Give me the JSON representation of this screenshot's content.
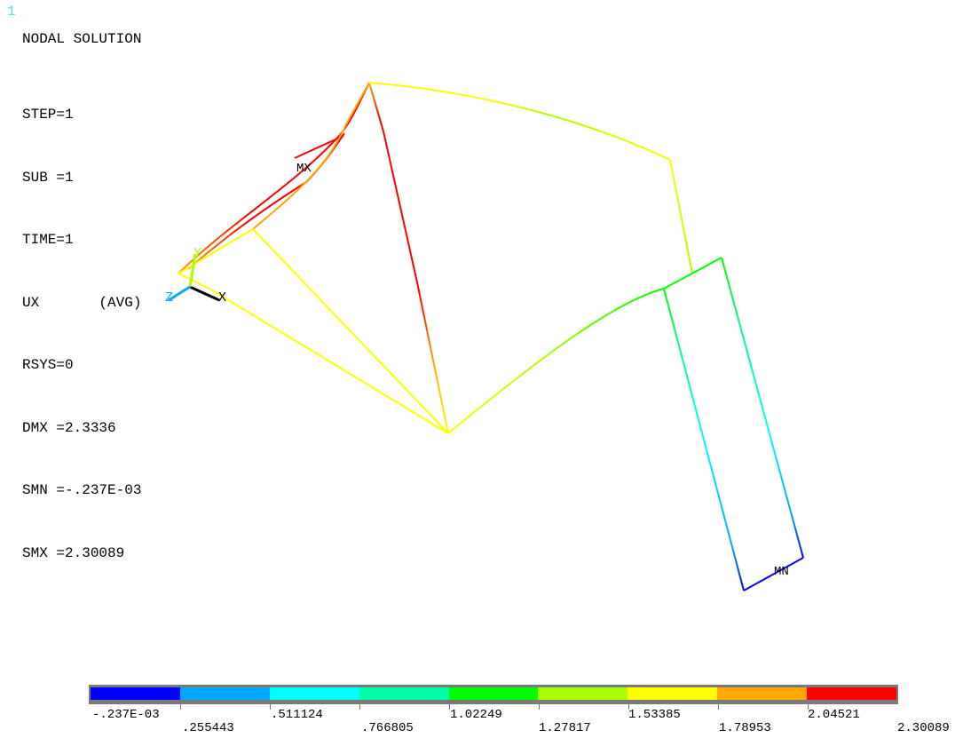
{
  "window_number": "1",
  "title": "NODAL SOLUTION",
  "info_lines": [
    "STEP=1",
    "SUB =1",
    "TIME=1",
    "UX       (AVG)",
    "RSYS=0",
    "DMX =2.3336",
    "SMN =-.237E-03",
    "SMX =2.30089"
  ],
  "markers": {
    "max": "MX",
    "min": "MN"
  },
  "triad": {
    "x": "X",
    "y": "Y",
    "z": "Z"
  },
  "legend": {
    "colors": [
      "#0000ff",
      "#00a9ff",
      "#00ffff",
      "#00ffa9",
      "#00ff00",
      "#a9ff00",
      "#ffff00",
      "#ffa900",
      "#ff0000"
    ],
    "labels_top": [
      "-.237E-03",
      ".511124",
      "1.02249",
      "1.53385",
      "2.04521"
    ],
    "labels_bottom": [
      ".255443",
      ".766805",
      "1.27817",
      "1.78953",
      "2.30089"
    ]
  }
}
